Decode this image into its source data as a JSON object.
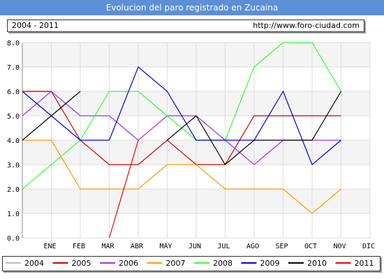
{
  "header": {
    "title": "Evolucion del paro registrado en Zucaina",
    "period": "2004 - 2011",
    "url": "http://www.foro-ciudad.com"
  },
  "chart_data": {
    "type": "line",
    "categories": [
      "ENE",
      "FEB",
      "MAR",
      "ABR",
      "MAY",
      "JUN",
      "JUL",
      "AGO",
      "SEP",
      "OCT",
      "NOV",
      "DIC"
    ],
    "ylim": [
      0,
      8
    ],
    "yticks": [
      "0.0",
      "1.0",
      "2.0",
      "3.0",
      "4.0",
      "5.0",
      "6.0",
      "7.0",
      "8.0"
    ],
    "grid": true,
    "legend_position": "bottom",
    "series": [
      {
        "name": "2004",
        "color": "#c0c0c0",
        "values": [
          null,
          null,
          null,
          null,
          null,
          null,
          null,
          null,
          null,
          null,
          null,
          null
        ]
      },
      {
        "name": "2005",
        "color": "#cc0000",
        "values": [
          6,
          6,
          4,
          3,
          3,
          4,
          3,
          3,
          5,
          5,
          5,
          5
        ]
      },
      {
        "name": "2006",
        "color": "#9933ff",
        "values": [
          5,
          6,
          5,
          5,
          4,
          5,
          5,
          4,
          3,
          4,
          4,
          4
        ]
      },
      {
        "name": "2007",
        "color": "#ff9900",
        "values": [
          4,
          4,
          2,
          2,
          2,
          3,
          3,
          2,
          2,
          2,
          1,
          2
        ]
      },
      {
        "name": "2008",
        "color": "#33ff33",
        "values": [
          2,
          3,
          4,
          6,
          6,
          5,
          4,
          4,
          7,
          8,
          8,
          6
        ]
      },
      {
        "name": "2009",
        "color": "#0000dd",
        "values": [
          6,
          5,
          4,
          4,
          7,
          6,
          4,
          4,
          4,
          6,
          3,
          4
        ]
      },
      {
        "name": "2010",
        "color": "#000000",
        "values": [
          4,
          5,
          6,
          null,
          null,
          4,
          5,
          3,
          4,
          4,
          4,
          6
        ]
      },
      {
        "name": "2011",
        "color": "#ee0000",
        "values": [
          6,
          6,
          null,
          0,
          4,
          null,
          null,
          null,
          null,
          null,
          null,
          null
        ]
      }
    ]
  }
}
